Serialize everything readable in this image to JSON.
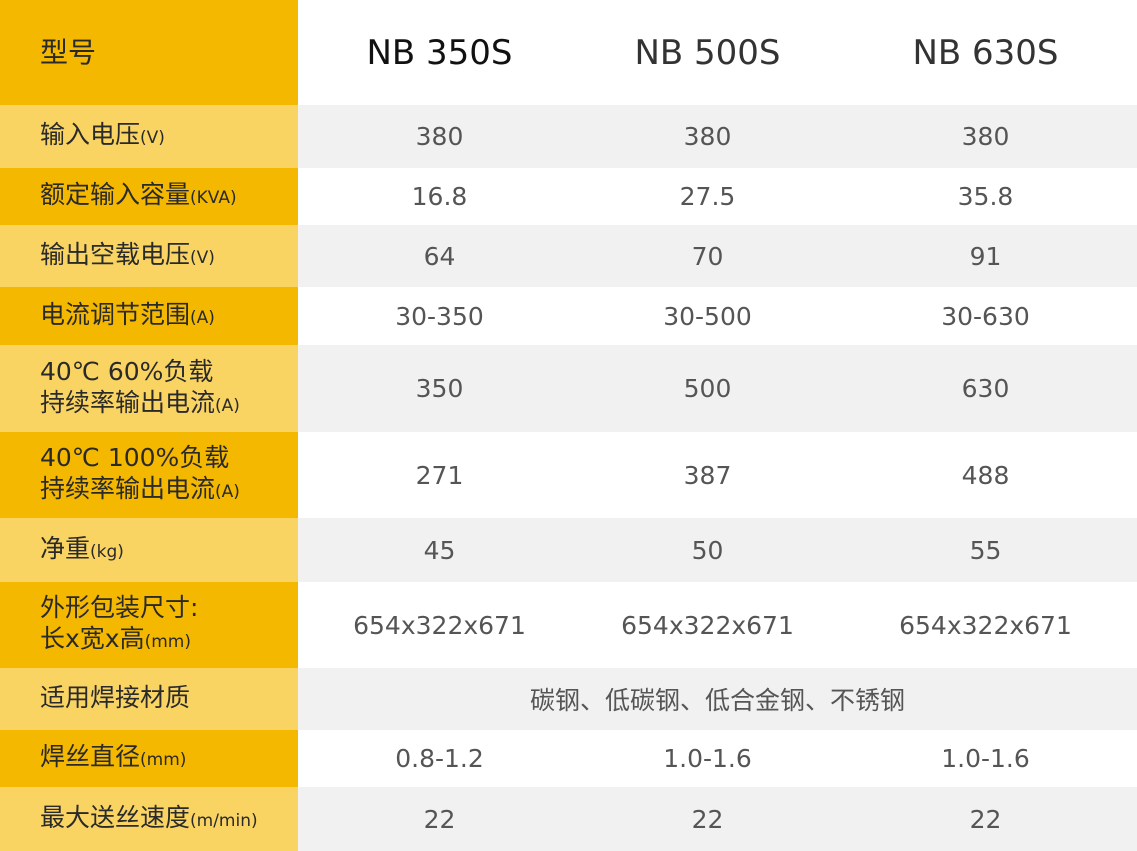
{
  "header": {
    "label": "型号",
    "models": [
      "NB 350S",
      "NB 500S",
      "NB 630S"
    ]
  },
  "rows": [
    {
      "label": "输入电压",
      "unit": "(V)",
      "values": [
        "380",
        "380",
        "380"
      ]
    },
    {
      "label": "额定输入容量",
      "unit": "(KVA)",
      "values": [
        "16.8",
        "27.5",
        "35.8"
      ]
    },
    {
      "label": "输出空载电压",
      "unit": "(V)",
      "values": [
        "64",
        "70",
        "91"
      ]
    },
    {
      "label": "电流调节范围",
      "unit": "(A)",
      "values": [
        "30-350",
        "30-500",
        "30-630"
      ]
    },
    {
      "label": "40℃  60%负载",
      "label2": "持续率输出电流",
      "unit": "(A)",
      "values": [
        "350",
        "500",
        "630"
      ]
    },
    {
      "label": "40℃  100%负载",
      "label2": "持续率输出电流",
      "unit": "(A)",
      "values": [
        "271",
        "387",
        "488"
      ]
    },
    {
      "label": "净重",
      "unit": "(kg)",
      "values": [
        "45",
        "50",
        "55"
      ]
    },
    {
      "label": "外形包装尺寸:",
      "label2": "长x宽x高",
      "unit": "(mm)",
      "values": [
        "654x322x671",
        "654x322x671",
        "654x322x671"
      ]
    },
    {
      "label": "适用焊接材质",
      "unit": "",
      "merged_value": "碳钢、低碳钢、低合金钢、不锈钢"
    },
    {
      "label": "焊丝直径",
      "unit": "(mm)",
      "values": [
        "0.8-1.2",
        "1.0-1.6",
        "1.0-1.6"
      ]
    },
    {
      "label": "最大送丝速度",
      "unit": "(m/min)",
      "values": [
        "22",
        "22",
        "22"
      ]
    }
  ]
}
